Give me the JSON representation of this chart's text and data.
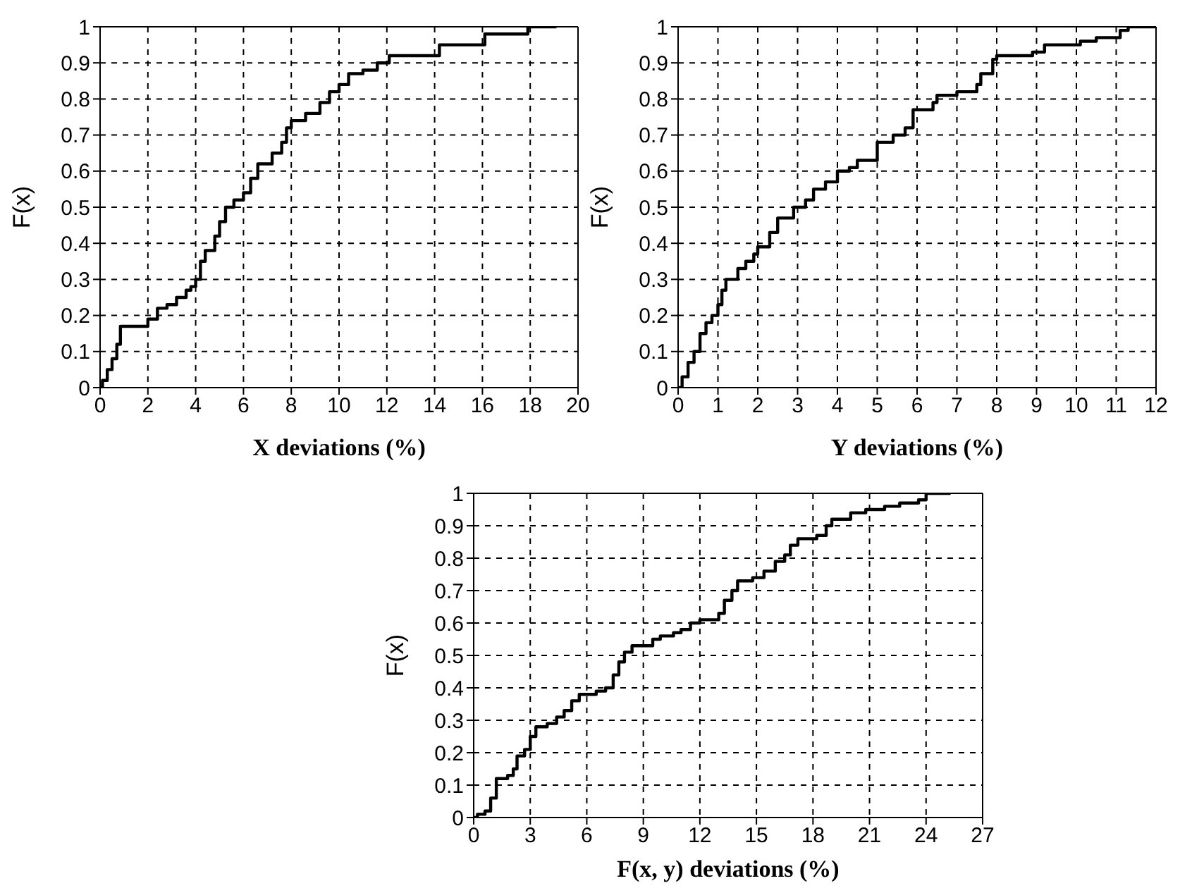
{
  "chart_data": [
    {
      "type": "step",
      "xlabel": "X deviations (%)",
      "ylabel": "F(x)",
      "xlim": [
        0,
        20
      ],
      "ylim": [
        0,
        1
      ],
      "xticks": [
        0,
        2,
        4,
        6,
        8,
        10,
        12,
        14,
        16,
        18,
        20
      ],
      "yticks": [
        0,
        0.1,
        0.2,
        0.3,
        0.4,
        0.5,
        0.6,
        0.7,
        0.8,
        0.9,
        1
      ],
      "grid": true,
      "line_style": "solid",
      "x": [
        0,
        0.1,
        0.3,
        0.5,
        0.7,
        0.85,
        1.9,
        2.0,
        2.4,
        2.8,
        3.2,
        3.6,
        3.8,
        4.0,
        4.2,
        4.4,
        4.8,
        5.0,
        5.25,
        5.6,
        6.0,
        6.3,
        6.6,
        7.2,
        7.6,
        7.8,
        8.0,
        8.6,
        9.2,
        9.6,
        10.0,
        10.4,
        11.0,
        11.6,
        12.1,
        14.0,
        14.2,
        15.7,
        16.1,
        17.6,
        17.9,
        19.1
      ],
      "series": [
        {
          "color": "#000000",
          "values": [
            0,
            0.02,
            0.05,
            0.08,
            0.12,
            0.17,
            0.17,
            0.19,
            0.22,
            0.23,
            0.25,
            0.27,
            0.28,
            0.3,
            0.35,
            0.38,
            0.42,
            0.46,
            0.5,
            0.52,
            0.54,
            0.58,
            0.62,
            0.65,
            0.68,
            0.72,
            0.74,
            0.76,
            0.79,
            0.82,
            0.84,
            0.87,
            0.88,
            0.9,
            0.92,
            0.92,
            0.95,
            0.95,
            0.98,
            0.98,
            1,
            1
          ]
        }
      ]
    },
    {
      "type": "step",
      "xlabel": "Y deviations (%)",
      "ylabel": "F(x)",
      "xlim": [
        0,
        12
      ],
      "ylim": [
        0,
        1
      ],
      "xticks": [
        0,
        1,
        2,
        3,
        4,
        5,
        6,
        7,
        8,
        9,
        10,
        11,
        12
      ],
      "yticks": [
        0,
        0.1,
        0.2,
        0.3,
        0.4,
        0.5,
        0.6,
        0.7,
        0.8,
        0.9,
        1
      ],
      "grid": true,
      "line_style": "solid",
      "x": [
        0,
        0.1,
        0.25,
        0.4,
        0.55,
        0.7,
        0.85,
        1.0,
        1.1,
        1.2,
        1.5,
        1.7,
        1.9,
        2.0,
        2.3,
        2.5,
        2.9,
        3.2,
        3.4,
        3.7,
        4.0,
        4.3,
        4.5,
        5.0,
        5.4,
        5.7,
        5.9,
        6.4,
        6.5,
        7.0,
        7.5,
        7.6,
        7.9,
        8.0,
        8.9,
        9.2,
        10.1,
        10.5,
        11.1,
        11.3,
        12
      ],
      "series": [
        {
          "color": "#000000",
          "values": [
            0,
            0.03,
            0.07,
            0.1,
            0.15,
            0.18,
            0.2,
            0.23,
            0.27,
            0.3,
            0.33,
            0.35,
            0.37,
            0.39,
            0.43,
            0.47,
            0.5,
            0.52,
            0.55,
            0.57,
            0.6,
            0.61,
            0.63,
            0.68,
            0.7,
            0.72,
            0.77,
            0.79,
            0.81,
            0.82,
            0.84,
            0.87,
            0.91,
            0.92,
            0.93,
            0.95,
            0.96,
            0.97,
            0.99,
            1,
            1
          ]
        }
      ]
    },
    {
      "type": "step",
      "xlabel": "F(x, y) deviations (%)",
      "ylabel": "F(x)",
      "xlim": [
        0,
        27
      ],
      "ylim": [
        0,
        1
      ],
      "xticks": [
        0,
        3,
        6,
        9,
        12,
        15,
        18,
        21,
        24,
        27
      ],
      "yticks": [
        0,
        0.1,
        0.2,
        0.3,
        0.4,
        0.5,
        0.6,
        0.7,
        0.8,
        0.9,
        1
      ],
      "grid": true,
      "line_style": "solid",
      "x": [
        0,
        0.2,
        0.6,
        0.9,
        1.2,
        1.8,
        2.1,
        2.3,
        2.7,
        3.0,
        3.3,
        3.9,
        4.4,
        4.8,
        5.2,
        5.6,
        6.2,
        6.5,
        7.0,
        7.4,
        7.7,
        8.0,
        8.4,
        9.5,
        9.9,
        10.6,
        11.0,
        11.5,
        12.0,
        13.0,
        13.3,
        13.7,
        14.0,
        14.8,
        15.4,
        16.0,
        16.5,
        16.8,
        17.2,
        18.2,
        18.7,
        19.0,
        20.0,
        20.8,
        21.8,
        22.6,
        23.6,
        24.0,
        25.3
      ],
      "series": [
        {
          "color": "#000000",
          "values": [
            0,
            0.01,
            0.02,
            0.06,
            0.12,
            0.13,
            0.15,
            0.19,
            0.21,
            0.25,
            0.28,
            0.29,
            0.31,
            0.33,
            0.36,
            0.38,
            0.38,
            0.39,
            0.4,
            0.44,
            0.48,
            0.51,
            0.53,
            0.55,
            0.56,
            0.57,
            0.58,
            0.6,
            0.61,
            0.63,
            0.67,
            0.7,
            0.73,
            0.74,
            0.76,
            0.79,
            0.81,
            0.84,
            0.86,
            0.87,
            0.9,
            0.92,
            0.94,
            0.95,
            0.96,
            0.97,
            0.98,
            1,
            1
          ]
        }
      ]
    }
  ]
}
